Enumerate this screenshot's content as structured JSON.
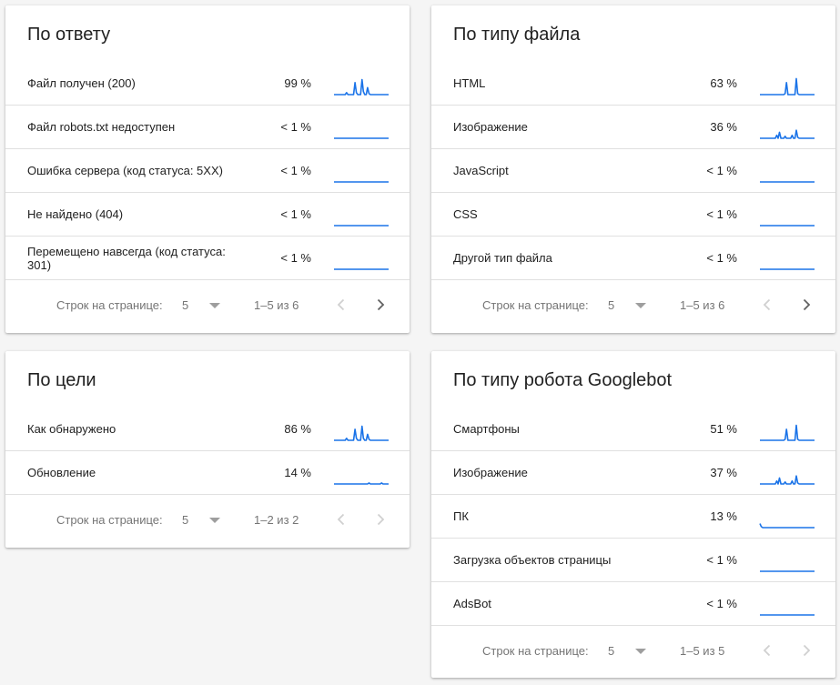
{
  "cards": [
    {
      "title": "По ответу",
      "rows": [
        {
          "label": "Файл получен (200)",
          "percent": "99 %",
          "trend": [
            0,
            0,
            0,
            0,
            0,
            0,
            0,
            0,
            0,
            0.1,
            0,
            0,
            0,
            0,
            0,
            0.6,
            0.1,
            0,
            0,
            0,
            0.75,
            0.15,
            0,
            0,
            0.35,
            0.05,
            0,
            0,
            0,
            0,
            0,
            0,
            0,
            0,
            0,
            0,
            0,
            0,
            0,
            0
          ]
        },
        {
          "label": "Файл robots.txt недоступен",
          "percent": "< 1 %",
          "trend": [
            0,
            0,
            0,
            0,
            0,
            0,
            0,
            0,
            0,
            0,
            0,
            0,
            0,
            0,
            0,
            0,
            0,
            0,
            0,
            0,
            0,
            0,
            0,
            0,
            0,
            0,
            0,
            0,
            0,
            0,
            0,
            0,
            0,
            0,
            0,
            0,
            0,
            0,
            0,
            0
          ]
        },
        {
          "label": "Ошибка сервера (код статуса: 5XX)",
          "percent": "< 1 %",
          "trend": [
            0,
            0,
            0,
            0,
            0,
            0,
            0,
            0,
            0,
            0,
            0,
            0,
            0,
            0,
            0,
            0,
            0,
            0,
            0,
            0,
            0,
            0,
            0,
            0,
            0,
            0,
            0,
            0,
            0,
            0,
            0,
            0,
            0,
            0,
            0,
            0,
            0,
            0,
            0,
            0
          ]
        },
        {
          "label": "Не найдено (404)",
          "percent": "< 1 %",
          "trend": [
            0,
            0,
            0,
            0,
            0,
            0,
            0,
            0,
            0,
            0,
            0,
            0,
            0,
            0,
            0,
            0,
            0,
            0,
            0,
            0,
            0,
            0,
            0,
            0,
            0,
            0,
            0,
            0,
            0,
            0,
            0,
            0,
            0,
            0,
            0,
            0,
            0,
            0,
            0,
            0
          ]
        },
        {
          "label": "Перемещено навсегда (код статуса: 301)",
          "percent": "< 1 %",
          "trend": [
            0,
            0,
            0,
            0,
            0,
            0,
            0,
            0,
            0,
            0,
            0,
            0,
            0,
            0,
            0,
            0,
            0,
            0,
            0,
            0,
            0,
            0,
            0,
            0,
            0,
            0,
            0,
            0,
            0,
            0,
            0,
            0,
            0,
            0,
            0,
            0,
            0,
            0,
            0,
            0
          ]
        }
      ],
      "pager": {
        "label": "Строк на странице:",
        "page_size": "5",
        "range": "1–5 из 6",
        "prev_enabled": false,
        "next_enabled": true
      }
    },
    {
      "title": "По типу файла",
      "rows": [
        {
          "label": "HTML",
          "percent": "63 %",
          "trend": [
            0,
            0,
            0,
            0,
            0,
            0,
            0,
            0,
            0,
            0,
            0,
            0,
            0,
            0,
            0,
            0,
            0,
            0,
            0.05,
            0.6,
            0,
            0,
            0,
            0,
            0,
            0,
            0.8,
            0.05,
            0,
            0,
            0,
            0,
            0,
            0,
            0,
            0,
            0,
            0,
            0,
            0
          ]
        },
        {
          "label": "Изображение",
          "percent": "36 %",
          "trend": [
            0,
            0,
            0,
            0,
            0,
            0,
            0,
            0,
            0,
            0,
            0,
            0,
            0.15,
            0,
            0.3,
            0,
            0,
            0,
            0.1,
            0,
            0,
            0,
            0,
            0.15,
            0,
            0,
            0.4,
            0.05,
            0,
            0,
            0,
            0,
            0,
            0,
            0,
            0,
            0,
            0,
            0,
            0
          ]
        },
        {
          "label": "JavaScript",
          "percent": "< 1 %",
          "trend": [
            0,
            0,
            0,
            0,
            0,
            0,
            0,
            0,
            0,
            0,
            0,
            0,
            0,
            0,
            0,
            0,
            0,
            0,
            0,
            0,
            0,
            0,
            0,
            0,
            0,
            0,
            0,
            0,
            0,
            0,
            0,
            0,
            0,
            0,
            0,
            0,
            0,
            0,
            0,
            0
          ]
        },
        {
          "label": "CSS",
          "percent": "< 1 %",
          "trend": [
            0,
            0,
            0,
            0,
            0,
            0,
            0,
            0,
            0,
            0,
            0,
            0,
            0,
            0,
            0,
            0,
            0,
            0,
            0,
            0,
            0,
            0,
            0,
            0,
            0,
            0,
            0,
            0,
            0,
            0,
            0,
            0,
            0,
            0,
            0,
            0,
            0,
            0,
            0,
            0
          ]
        },
        {
          "label": "Другой тип файла",
          "percent": "< 1 %",
          "trend": [
            0,
            0,
            0,
            0,
            0,
            0,
            0,
            0,
            0,
            0,
            0,
            0,
            0,
            0,
            0,
            0,
            0,
            0,
            0,
            0,
            0,
            0,
            0,
            0,
            0,
            0,
            0,
            0,
            0,
            0,
            0,
            0,
            0,
            0,
            0,
            0,
            0,
            0,
            0,
            0
          ]
        }
      ],
      "pager": {
        "label": "Строк на странице:",
        "page_size": "5",
        "range": "1–5 из 6",
        "prev_enabled": false,
        "next_enabled": true
      }
    },
    {
      "title": "По цели",
      "rows": [
        {
          "label": "Как обнаружено",
          "percent": "86 %",
          "trend": [
            0,
            0,
            0,
            0,
            0,
            0,
            0,
            0,
            0,
            0.1,
            0,
            0,
            0,
            0,
            0,
            0.55,
            0.1,
            0,
            0,
            0,
            0.7,
            0.1,
            0,
            0,
            0.3,
            0.05,
            0,
            0,
            0,
            0,
            0,
            0,
            0,
            0,
            0,
            0,
            0,
            0,
            0,
            0
          ]
        },
        {
          "label": "Обновление",
          "percent": "14 %",
          "trend": [
            0,
            0,
            0,
            0,
            0,
            0,
            0,
            0,
            0,
            0,
            0,
            0,
            0,
            0,
            0,
            0,
            0,
            0,
            0,
            0,
            0,
            0,
            0,
            0,
            0,
            0.05,
            0,
            0,
            0,
            0,
            0,
            0,
            0,
            0,
            0.05,
            0,
            0,
            0,
            0,
            0
          ]
        }
      ],
      "pager": {
        "label": "Строк на странице:",
        "page_size": "5",
        "range": "1–2 из 2",
        "prev_enabled": false,
        "next_enabled": false
      }
    },
    {
      "title": "По типу робота Googlebot",
      "rows": [
        {
          "label": "Смартфоны",
          "percent": "51 %",
          "trend": [
            0,
            0,
            0,
            0,
            0,
            0,
            0,
            0,
            0,
            0,
            0,
            0,
            0,
            0,
            0,
            0,
            0,
            0,
            0.05,
            0.55,
            0,
            0,
            0,
            0,
            0,
            0,
            0.75,
            0.05,
            0,
            0,
            0,
            0,
            0,
            0,
            0,
            0,
            0,
            0,
            0,
            0
          ]
        },
        {
          "label": "Изображение",
          "percent": "37 %",
          "trend": [
            0,
            0,
            0,
            0,
            0,
            0,
            0,
            0,
            0,
            0,
            0,
            0,
            0.15,
            0,
            0.3,
            0,
            0,
            0,
            0.1,
            0,
            0,
            0,
            0,
            0.15,
            0,
            0,
            0.4,
            0.05,
            0,
            0,
            0,
            0,
            0,
            0,
            0,
            0,
            0,
            0,
            0,
            0
          ]
        },
        {
          "label": "ПК",
          "percent": "13 %",
          "trend": [
            0.2,
            0.05,
            0,
            0,
            0,
            0,
            0,
            0,
            0,
            0,
            0,
            0,
            0,
            0,
            0,
            0,
            0,
            0,
            0,
            0,
            0,
            0,
            0,
            0,
            0,
            0,
            0,
            0,
            0,
            0,
            0,
            0,
            0,
            0,
            0,
            0,
            0,
            0,
            0,
            0
          ]
        },
        {
          "label": "Загрузка объектов страницы",
          "percent": "< 1 %",
          "trend": [
            0,
            0,
            0,
            0,
            0,
            0,
            0,
            0,
            0,
            0,
            0,
            0,
            0,
            0,
            0,
            0,
            0,
            0,
            0,
            0,
            0,
            0,
            0,
            0,
            0,
            0,
            0,
            0,
            0,
            0,
            0,
            0,
            0,
            0,
            0,
            0,
            0,
            0,
            0,
            0
          ]
        },
        {
          "label": "AdsBot",
          "percent": "< 1 %",
          "trend": [
            0,
            0,
            0,
            0,
            0,
            0,
            0,
            0,
            0,
            0,
            0,
            0,
            0,
            0,
            0,
            0,
            0,
            0,
            0,
            0,
            0,
            0,
            0,
            0,
            0,
            0,
            0,
            0,
            0,
            0,
            0,
            0,
            0,
            0,
            0,
            0,
            0,
            0,
            0,
            0
          ]
        }
      ],
      "pager": {
        "label": "Строк на странице:",
        "page_size": "5",
        "range": "1–5 из 5",
        "prev_enabled": false,
        "next_enabled": false
      }
    }
  ],
  "colors": {
    "sparkline": "#1a73e8",
    "enabled_arrow": "#616161",
    "disabled_arrow": "#d0d0d0"
  },
  "icons": {
    "prev": "chevron-left-icon",
    "next": "chevron-right-icon",
    "dropdown": "caret-down-icon"
  }
}
